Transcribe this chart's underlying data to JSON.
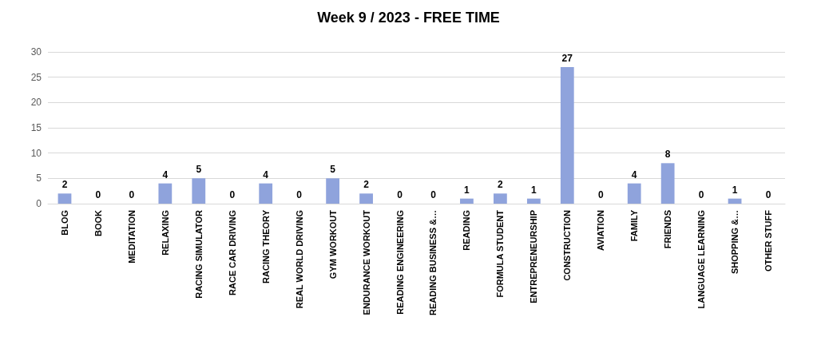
{
  "chart_data": {
    "type": "bar",
    "title": "Week 9 / 2023 - FREE TIME",
    "categories": [
      "BLOG",
      "BOOK",
      "MEDITATION",
      "RELAXING",
      "RACING SIMULATOR",
      "RACE CAR DRIVING",
      "RACING THEORY",
      "REAL WORLD DRIVING",
      "GYM WORKOUT",
      "ENDURANCE WORKOUT",
      "READING ENGINEERING",
      "READING BUSINESS &…",
      "READING",
      "FORMULA STUDENT",
      "ENTREPRENEURSHIP",
      "CONSTRUCTION",
      "AVIATION",
      "FAMILY",
      "FRIENDS",
      "LANGUAGE LEARNING",
      "SHOPPING &…",
      "OTHER STUFF"
    ],
    "values": [
      2,
      0,
      0,
      4,
      5,
      0,
      4,
      0,
      5,
      2,
      0,
      0,
      1,
      2,
      1,
      27,
      0,
      4,
      8,
      0,
      1,
      0
    ],
    "color": "#8fa3dc",
    "ylim": [
      0,
      30
    ],
    "yticks": [
      0,
      5,
      10,
      15,
      20,
      25,
      30
    ],
    "grid": true,
    "data_labels": true
  }
}
